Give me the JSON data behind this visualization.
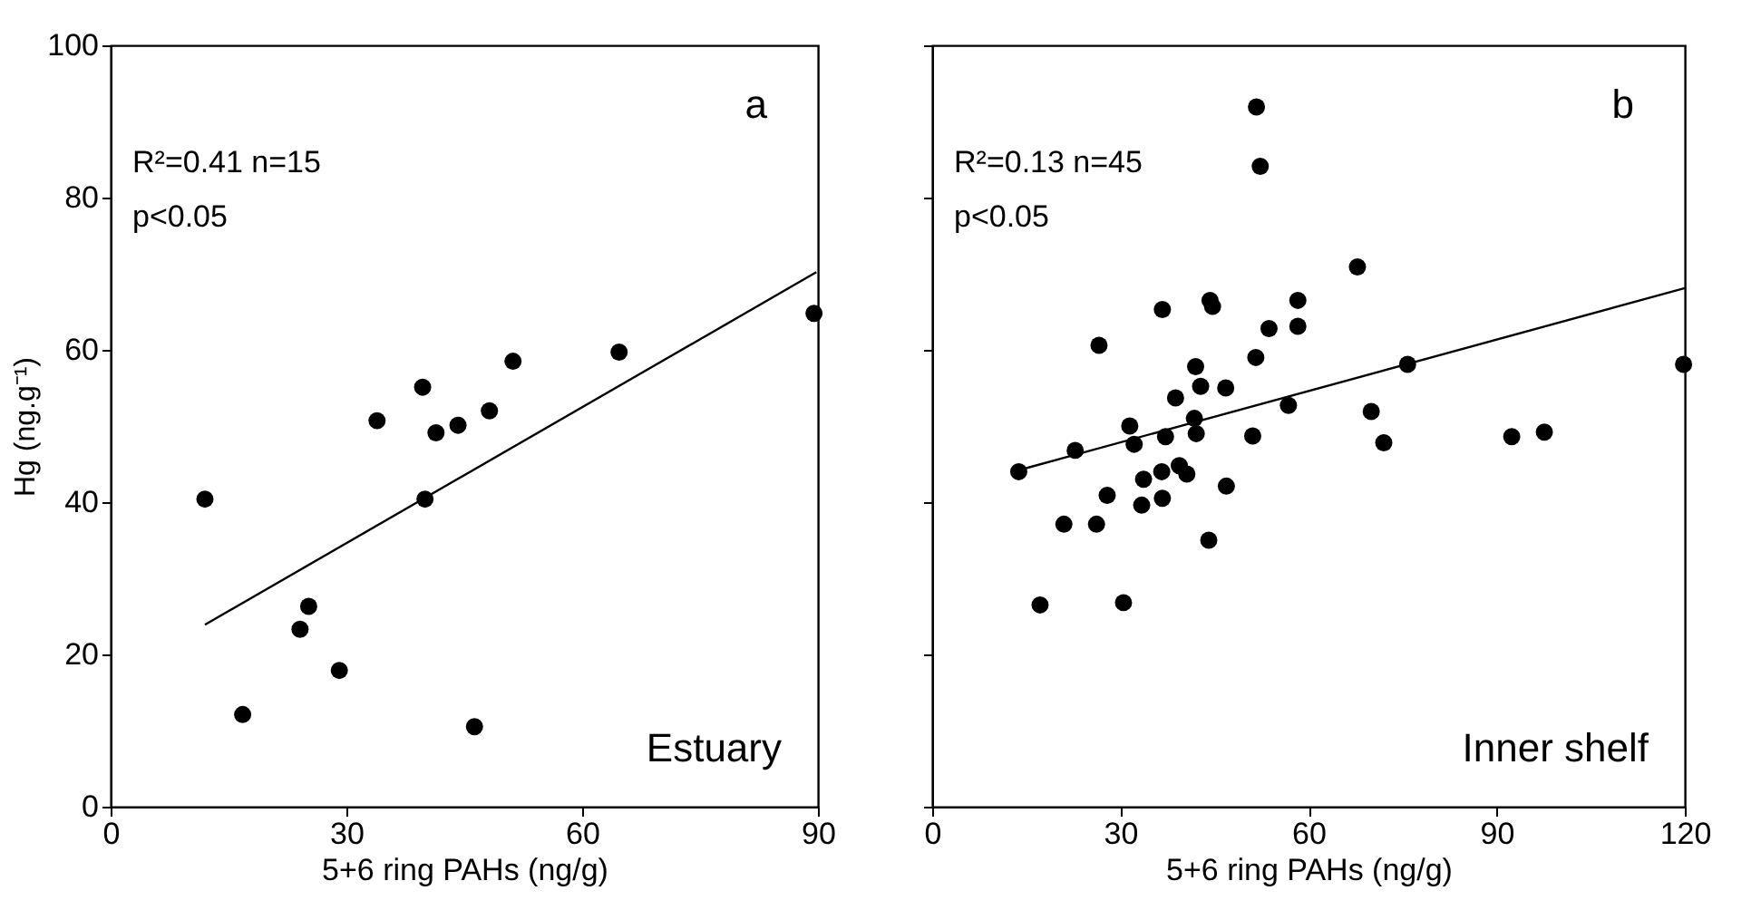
{
  "chart_data": [
    {
      "type": "scatter",
      "xlabel": "5+6 ring PAHs (ng/g)",
      "ylabel": "Hg (ng.g⁻¹)",
      "xlim": [
        0,
        90
      ],
      "xticks": [
        0,
        30,
        60,
        90
      ],
      "ylim": [
        0,
        100
      ],
      "yticks": [
        0,
        20,
        40,
        60,
        80,
        100
      ],
      "annotations": [
        "R²=0.41 n=15",
        "p<0.05",
        "a",
        "Estuary"
      ],
      "series": [
        {
          "marker": "circle",
          "color": "#000000",
          "x": [
            12.0,
            16.8,
            24.1,
            25.2,
            29.1,
            33.9,
            39.7,
            40.0,
            41.4,
            44.2,
            48.2,
            46.3,
            51.2,
            64.7,
            89.5
          ],
          "values": [
            40.4,
            12.1,
            23.3,
            26.3,
            17.9,
            50.7,
            55.1,
            40.4,
            49.1,
            50.1,
            52.0,
            10.5,
            58.5,
            59.7,
            64.8
          ]
        },
        {
          "type": "line",
          "color": "#000000",
          "x": [
            12.0,
            89.8
          ],
          "values": [
            23.9,
            70.2
          ]
        }
      ]
    },
    {
      "type": "scatter",
      "xlabel": "5+6 ring PAHs (ng/g)",
      "xlim": [
        0,
        120
      ],
      "xticks": [
        0,
        30,
        60,
        90,
        120
      ],
      "ylim": [
        0,
        100
      ],
      "yticks": [
        0,
        20,
        40,
        60,
        80,
        100
      ],
      "tick_labels": "x",
      "annotations": [
        "R²=0.13 n=45",
        "p<0.05",
        "b",
        "Inner shelf"
      ],
      "series": [
        {
          "marker": "circle",
          "color": "#000000",
          "x": [
            51.7,
            52.3,
            67.8,
            36.7,
            44.3,
            44.7,
            58.3,
            58.3,
            53.7,
            26.6,
            51.6,
            75.8,
            119.8,
            42.0,
            42.8,
            46.8,
            38.8,
            56.8,
            70.0,
            41.8,
            31.5,
            42.1,
            51.1,
            37.2,
            32.2,
            72.0,
            92.4,
            97.6,
            22.8,
            13.8,
            36.6,
            39.4,
            40.6,
            33.7,
            46.9,
            27.9,
            36.7,
            33.4,
            21.0,
            26.2,
            44.1,
            17.2,
            30.5
          ],
          "values": [
            91.9,
            84.1,
            70.9,
            65.3,
            66.5,
            65.7,
            66.5,
            63.1,
            62.8,
            60.6,
            59.0,
            58.1,
            58.1,
            57.8,
            55.2,
            55.0,
            53.7,
            52.7,
            51.9,
            51.0,
            50.0,
            49.0,
            48.7,
            48.6,
            47.6,
            47.8,
            48.6,
            49.2,
            46.8,
            44.0,
            44.0,
            44.8,
            43.7,
            43.0,
            42.1,
            40.9,
            40.5,
            39.6,
            37.1,
            37.1,
            35.0,
            26.5,
            26.8
          ]
        },
        {
          "type": "line",
          "color": "#000000",
          "x": [
            13.8,
            120.0
          ],
          "values": [
            44.2,
            68.1
          ]
        }
      ]
    }
  ]
}
